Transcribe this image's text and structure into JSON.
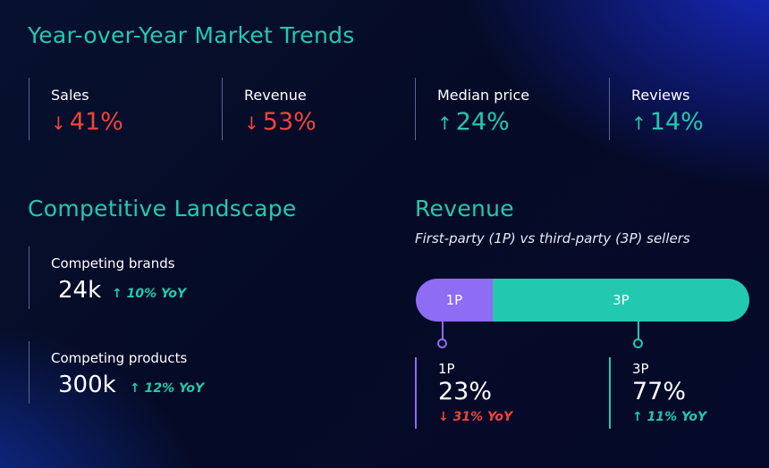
{
  "trends": {
    "title": "Year-over-Year Market Trends",
    "metrics": [
      {
        "label": "Sales",
        "arrow": "↓",
        "value": "41%",
        "color": "#f2443a"
      },
      {
        "label": "Revenue",
        "arrow": "↓",
        "value": "53%",
        "color": "#f2443a"
      },
      {
        "label": "Median price",
        "arrow": "↑",
        "value": "24%",
        "color": "#22c9b0"
      },
      {
        "label": "Reviews",
        "arrow": "↑",
        "value": "14%",
        "color": "#22c9b0"
      }
    ]
  },
  "competitive": {
    "title": "Competitive Landscape",
    "items": [
      {
        "label": "Competing brands",
        "value": "24k",
        "yoy": "↑ 10% YoY"
      },
      {
        "label": "Competing products",
        "value": "300k",
        "yoy": "↑ 12% YoY"
      }
    ]
  },
  "revenue": {
    "title": "Revenue",
    "subtitle": "First-party (1P) vs third-party (3P) sellers",
    "colors": {
      "first_party": "#8e6cf3",
      "third_party": "#22c9b0"
    },
    "bar": {
      "first_party_label": "1P",
      "third_party_label": "3P",
      "first_party_share": 0.23,
      "third_party_share": 0.77
    },
    "first_party": {
      "name": "1P",
      "pct": "23%",
      "change": "↓ 31% YoY"
    },
    "third_party": {
      "name": "3P",
      "pct": "77%",
      "change": "↑ 11% YoY"
    }
  }
}
